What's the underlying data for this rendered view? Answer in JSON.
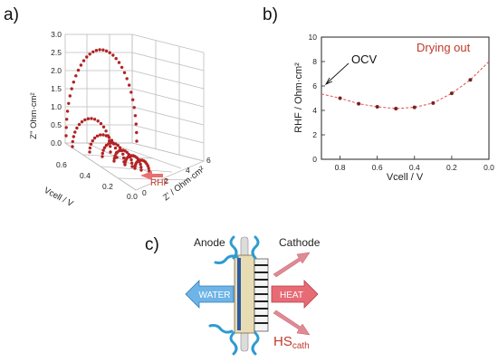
{
  "panels": {
    "a": {
      "label": "a)"
    },
    "b": {
      "label": "b)"
    },
    "c": {
      "label": "c)"
    }
  },
  "panel_a": {
    "z_axis_label": "Z\" Ohm·cm²",
    "z_ticks": [
      "0.0",
      "0.5",
      "1.0",
      "1.5",
      "2.0",
      "2.5",
      "3.0"
    ],
    "vcell_axis_label": "Vcell / V",
    "vcell_ticks": [
      "0.6",
      "0.4",
      "0.2",
      "0.0"
    ],
    "zreal_axis_label": "Z' / Ohm·cm²",
    "zreal_ticks": [
      "0",
      "2",
      "4",
      "6"
    ],
    "rhf_label": "RHF",
    "colors": {
      "arcs": "#b22222",
      "grid": "#bdbdbd",
      "rhf_arrow": "#e06060"
    }
  },
  "chart_data": {
    "type": "scatter",
    "title": "",
    "xlabel": "Vcell / V",
    "ylabel": "RHF / Ohm·cm²",
    "xlim": [
      0.9,
      0.0
    ],
    "ylim": [
      0,
      10
    ],
    "x_ticks": [
      "0.8",
      "0.6",
      "0.4",
      "0.2",
      "0.0"
    ],
    "y_ticks": [
      "0",
      "2",
      "4",
      "6",
      "8",
      "10"
    ],
    "x": [
      0.8,
      0.7,
      0.6,
      0.5,
      0.4,
      0.3,
      0.2,
      0.1
    ],
    "y": [
      5.0,
      4.55,
      4.3,
      4.15,
      4.25,
      4.6,
      5.4,
      6.5
    ],
    "fit_color": "#e05050",
    "marker_color": "#7b2020",
    "annotations": {
      "ocv": "OCV",
      "drying": "Drying out"
    }
  },
  "panel_c": {
    "anode": "Anode",
    "cathode": "Cathode",
    "water": "WATER",
    "heat": "HEAT",
    "hs_cath": "HScath",
    "colors": {
      "water": "#5fa8dc",
      "heat": "#e0606a",
      "wave": "#2e9bd0",
      "plate": "#e8dcb5"
    }
  }
}
